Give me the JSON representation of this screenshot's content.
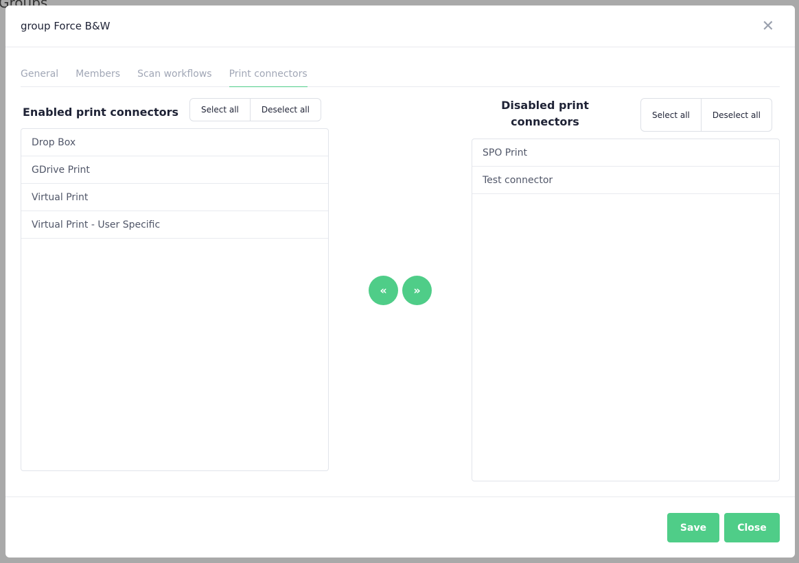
{
  "background": {
    "title": "Groups"
  },
  "modal": {
    "title": "group Force B&W",
    "close_icon": "close-icon",
    "tabs": [
      {
        "label": "General"
      },
      {
        "label": "Members"
      },
      {
        "label": "Scan workflows"
      },
      {
        "label": "Print connectors",
        "active": true
      }
    ],
    "enabled": {
      "title": "Enabled print connectors",
      "select_all": "Select all",
      "deselect_all": "Deselect all",
      "items": [
        "Drop Box",
        "GDrive Print",
        "Virtual Print",
        "Virtual Print - User Specific"
      ]
    },
    "disabled": {
      "title_line1": "Disabled print",
      "title_line2": "connectors",
      "select_all": "Select all",
      "deselect_all": "Deselect all",
      "items": [
        "SPO Print",
        "Test connector"
      ]
    },
    "move_left_icon": "double-chevron-left-icon",
    "move_right_icon": "double-chevron-right-icon",
    "footer": {
      "save": "Save",
      "close": "Close"
    },
    "accent_color": "#4fcd88"
  }
}
